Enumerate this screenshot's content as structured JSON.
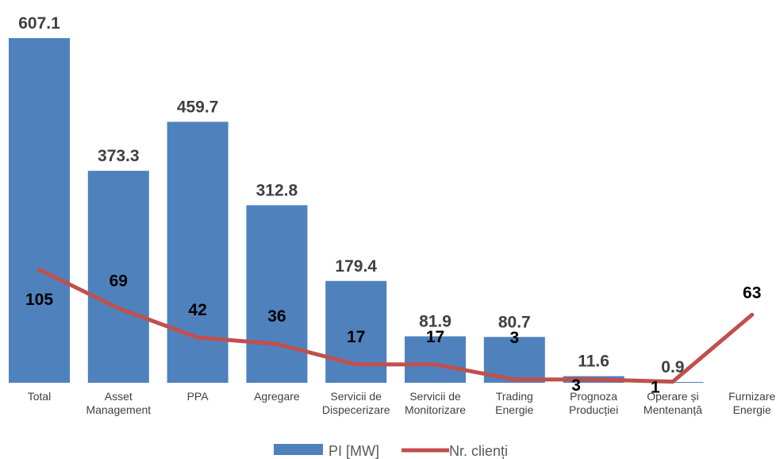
{
  "chart_data": {
    "type": "bar",
    "categories": [
      [
        "Total"
      ],
      [
        "Asset",
        "Management"
      ],
      [
        "PPA"
      ],
      [
        "Agregare"
      ],
      [
        "Servicii de",
        "Dispecerizare"
      ],
      [
        "Servicii de",
        "Monitorizare"
      ],
      [
        "Trading",
        "Energie"
      ],
      [
        "Prognoza",
        "Producției"
      ],
      [
        "Operare și",
        "Mentenanță"
      ],
      [
        "Furnizare",
        "Energie"
      ]
    ],
    "series": [
      {
        "name": "PI [MW]",
        "type": "bar",
        "color": "#4f81bd",
        "values": [
          607.1,
          373.3,
          459.7,
          312.8,
          179.4,
          81.9,
          80.7,
          11.6,
          0.9,
          null
        ],
        "labels": [
          "607.1",
          "373.3",
          "459.7",
          "312.8",
          "179.4",
          "81.9",
          "80.7",
          "11.6",
          "0.9",
          ""
        ]
      },
      {
        "name": "Nr. clienți",
        "type": "line",
        "color": "#c0504d",
        "values": [
          105,
          69,
          42,
          36,
          17,
          17,
          3,
          3,
          1,
          63
        ],
        "labels": [
          "105",
          "69",
          "42",
          "36",
          "17",
          "17",
          "3",
          "3",
          "1",
          "63"
        ]
      }
    ],
    "ylim_primary": [
      0,
      630
    ],
    "ylim_secondary": [
      0,
      320
    ],
    "legend_position": "bottom",
    "grid": false
  }
}
